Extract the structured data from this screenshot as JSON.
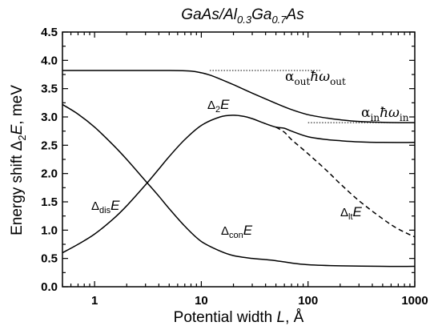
{
  "chart_data": {
    "type": "line",
    "title": {
      "prefix": "GaAs/Al",
      "sub1": "0.3",
      "mid": "Ga",
      "sub2": "0.7",
      "suffix": "As"
    },
    "xlabel": {
      "prefix": "Potential width ",
      "var": "L",
      "suffix": ", Å"
    },
    "ylabel": {
      "prefix": "Energy shift Δ",
      "sub": "2",
      "var": "E",
      "suffix": ", meV"
    },
    "x_scale": "log",
    "xlim": [
      0.5,
      1000
    ],
    "ylim": [
      0.0,
      4.5
    ],
    "x_ticks": [
      1,
      10,
      100,
      1000
    ],
    "x_tick_labels": [
      "1",
      "10",
      "100",
      "1000"
    ],
    "y_ticks": [
      0.0,
      0.5,
      1.0,
      1.5,
      2.0,
      2.5,
      3.0,
      3.5,
      4.0,
      4.5
    ],
    "y_tick_labels": [
      "0.0",
      "0.5",
      "1.0",
      "1.5",
      "2.0",
      "2.5",
      "3.0",
      "3.5",
      "4.0",
      "4.5"
    ],
    "grid": false,
    "series": [
      {
        "key": "delta2E",
        "style": "solid",
        "x": [
          0.5,
          1,
          2,
          5,
          8,
          10,
          12,
          15,
          20,
          30,
          50,
          70,
          100,
          150,
          200,
          300,
          500,
          700,
          1000
        ],
        "y": [
          3.82,
          3.82,
          3.82,
          3.82,
          3.81,
          3.78,
          3.74,
          3.67,
          3.57,
          3.42,
          3.24,
          3.13,
          3.04,
          2.98,
          2.95,
          2.92,
          2.905,
          2.9,
          2.9
        ]
      },
      {
        "key": "deltaDis",
        "style": "solid",
        "x": [
          0.5,
          0.7,
          1,
          1.5,
          2,
          3,
          4,
          5,
          7,
          10,
          15,
          20,
          30,
          40,
          50,
          70,
          100,
          200,
          500,
          1000
        ],
        "y": [
          3.22,
          3.05,
          2.82,
          2.5,
          2.25,
          1.87,
          1.6,
          1.38,
          1.07,
          0.8,
          0.63,
          0.55,
          0.5,
          0.48,
          0.46,
          0.42,
          0.39,
          0.37,
          0.36,
          0.36
        ]
      },
      {
        "key": "deltaCon",
        "style": "solid",
        "x": [
          0.5,
          0.7,
          1,
          1.5,
          2,
          3,
          4,
          5,
          7,
          10,
          15,
          20,
          25,
          30,
          40,
          50,
          60,
          70,
          100,
          150,
          200,
          300,
          500,
          1000
        ],
        "y": [
          0.6,
          0.75,
          0.93,
          1.2,
          1.43,
          1.8,
          2.08,
          2.3,
          2.6,
          2.85,
          3.0,
          3.03,
          3.01,
          2.97,
          2.88,
          2.82,
          2.8,
          2.75,
          2.65,
          2.6,
          2.58,
          2.56,
          2.55,
          2.55
        ]
      },
      {
        "key": "deltaLt",
        "style": "dashed",
        "x": [
          50,
          60,
          70,
          100,
          150,
          200,
          300,
          500,
          700,
          1000
        ],
        "y": [
          2.82,
          2.73,
          2.6,
          2.35,
          2.05,
          1.82,
          1.52,
          1.2,
          1.02,
          0.88
        ]
      }
    ],
    "reference_lines": [
      {
        "key": "alpha_out",
        "style": "dotted",
        "y": 3.82,
        "x_range": [
          12,
          130
        ]
      },
      {
        "key": "alpha_in",
        "style": "dotted",
        "y": 2.9,
        "x_range": [
          100,
          1000
        ]
      }
    ],
    "annotations": [
      {
        "key": "a_out",
        "greek": "α",
        "sub": "out",
        "mid": "ħω",
        "sub2": "out"
      },
      {
        "key": "a_in",
        "greek": "α",
        "sub": "in",
        "mid": "ħω",
        "sub2": "in"
      },
      {
        "key": "d2E",
        "greek": "Δ",
        "sub": "2",
        "var": "E"
      },
      {
        "key": "dDis",
        "greek": "Δ",
        "sub": "dis",
        "var": "E"
      },
      {
        "key": "dCon",
        "greek": "Δ",
        "sub": "con",
        "var": "E"
      },
      {
        "key": "dLt",
        "greek": "Δ",
        "sub": "lt",
        "var": "E"
      }
    ]
  }
}
